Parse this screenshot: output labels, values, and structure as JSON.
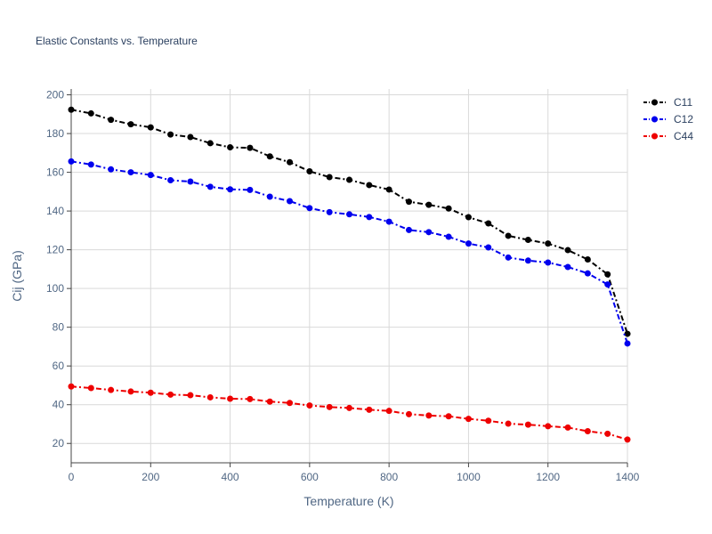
{
  "chart_data": {
    "type": "line",
    "title": "Elastic Constants vs. Temperature",
    "xlabel": "Temperature (K)",
    "ylabel": "Cij (GPa)",
    "xlim": [
      0,
      1400
    ],
    "ylim": [
      10,
      203
    ],
    "xticks": [
      0,
      200,
      400,
      600,
      800,
      1000,
      1200,
      1400
    ],
    "yticks": [
      20,
      40,
      60,
      80,
      100,
      120,
      140,
      160,
      180,
      200
    ],
    "grid": true,
    "legend": "top-right",
    "line_style": "dash-dot",
    "x": [
      0,
      50,
      100,
      150,
      200,
      250,
      300,
      350,
      400,
      450,
      500,
      550,
      600,
      650,
      700,
      750,
      800,
      850,
      900,
      950,
      1000,
      1050,
      1100,
      1150,
      1200,
      1250,
      1300,
      1350,
      1400
    ],
    "series": [
      {
        "name": "C11",
        "color": "#000000",
        "values": [
          192.3,
          190.4,
          187.1,
          184.8,
          183.2,
          179.5,
          178.2,
          175.0,
          172.9,
          172.6,
          168.2,
          165.2,
          160.5,
          157.5,
          156.1,
          153.4,
          151.1,
          144.8,
          143.2,
          141.3,
          136.8,
          133.6,
          127.2,
          125.1,
          123.2,
          119.8,
          115.0,
          107.3,
          76.6
        ]
      },
      {
        "name": "C12",
        "color": "#0000ee",
        "values": [
          165.6,
          164.0,
          161.5,
          160.0,
          158.6,
          155.9,
          155.2,
          152.5,
          151.2,
          150.9,
          147.4,
          145.1,
          141.5,
          139.4,
          138.3,
          136.9,
          134.5,
          130.2,
          129.1,
          126.7,
          123.2,
          121.2,
          116.0,
          114.4,
          113.4,
          111.1,
          107.8,
          102.1,
          71.6
        ]
      },
      {
        "name": "C44",
        "color": "#ee0000",
        "values": [
          49.4,
          48.6,
          47.6,
          46.8,
          46.2,
          45.2,
          44.9,
          43.8,
          43.1,
          42.9,
          41.6,
          40.9,
          39.6,
          38.8,
          38.3,
          37.4,
          36.8,
          35.1,
          34.4,
          34.0,
          32.7,
          31.7,
          30.2,
          29.7,
          28.9,
          28.2,
          26.3,
          25.0,
          22.0
        ]
      }
    ]
  }
}
